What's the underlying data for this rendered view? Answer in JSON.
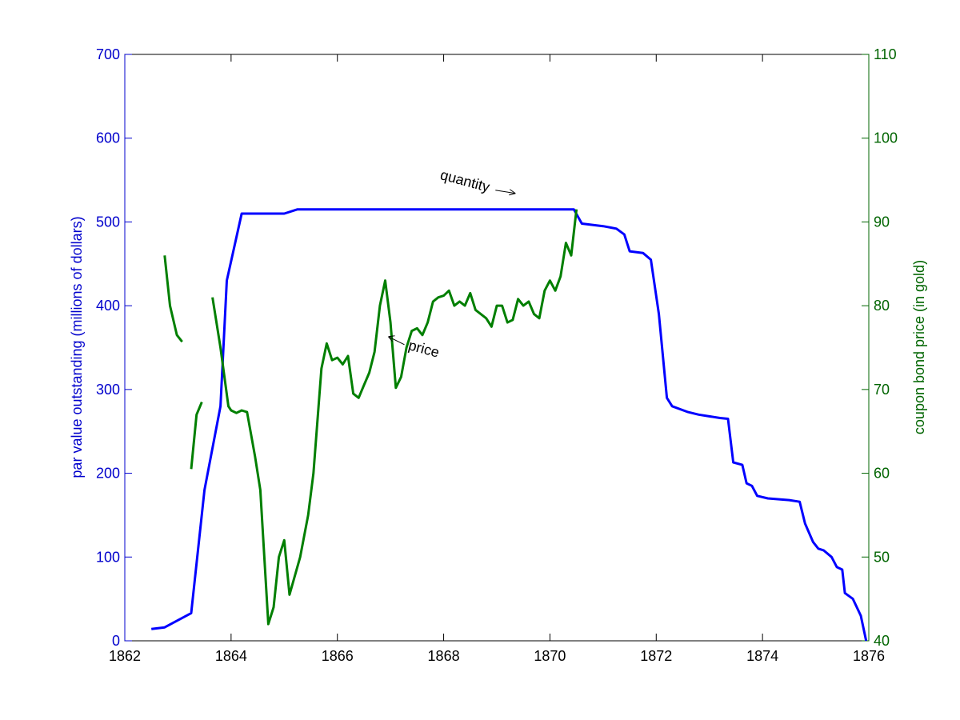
{
  "chart_data": {
    "type": "line",
    "x_axis": {
      "range": [
        1862,
        1876
      ],
      "ticks": [
        1862,
        1864,
        1866,
        1868,
        1870,
        1872,
        1874,
        1876
      ]
    },
    "y_left": {
      "label": "par value outstanding (millions of dollars)",
      "range": [
        0,
        700
      ],
      "ticks": [
        0,
        100,
        200,
        300,
        400,
        500,
        600,
        700
      ],
      "color": "#0000cc"
    },
    "y_right": {
      "label": "coupon bond price (in gold)",
      "range": [
        40,
        110
      ],
      "ticks": [
        40,
        50,
        60,
        70,
        80,
        90,
        100,
        110
      ],
      "color": "#006400"
    },
    "annotations": [
      {
        "text": "quantity",
        "target_axis": "left",
        "x": 1869.2,
        "y": 515
      },
      {
        "text": "price",
        "target_axis": "right",
        "x": 1866.9,
        "y": 76.5
      }
    ],
    "series": [
      {
        "axis": "left",
        "color": "#0000ff",
        "values": [
          [
            1862.5,
            14
          ],
          [
            1862.75,
            16
          ],
          [
            1863.25,
            33
          ],
          [
            1863.5,
            180
          ],
          [
            1863.8,
            280
          ],
          [
            1863.92,
            430
          ],
          [
            1864.2,
            510
          ],
          [
            1864.5,
            510
          ],
          [
            1865.0,
            510
          ],
          [
            1865.25,
            515
          ],
          [
            1866.0,
            515
          ],
          [
            1868.0,
            515
          ],
          [
            1870.0,
            515
          ],
          [
            1870.45,
            515
          ],
          [
            1870.6,
            498
          ],
          [
            1871.0,
            495
          ],
          [
            1871.25,
            492
          ],
          [
            1871.4,
            485
          ],
          [
            1871.5,
            465
          ],
          [
            1871.75,
            463
          ],
          [
            1871.9,
            455
          ],
          [
            1872.05,
            390
          ],
          [
            1872.2,
            290
          ],
          [
            1872.3,
            280
          ],
          [
            1872.6,
            273
          ],
          [
            1872.8,
            270
          ],
          [
            1873.2,
            266
          ],
          [
            1873.35,
            265
          ],
          [
            1873.45,
            213
          ],
          [
            1873.62,
            210
          ],
          [
            1873.7,
            188
          ],
          [
            1873.8,
            185
          ],
          [
            1873.9,
            173
          ],
          [
            1874.1,
            170
          ],
          [
            1874.5,
            168
          ],
          [
            1874.7,
            166
          ],
          [
            1874.8,
            140
          ],
          [
            1874.95,
            118
          ],
          [
            1875.05,
            110
          ],
          [
            1875.15,
            108
          ],
          [
            1875.3,
            100
          ],
          [
            1875.4,
            88
          ],
          [
            1875.5,
            85
          ],
          [
            1875.55,
            57
          ],
          [
            1875.7,
            50
          ],
          [
            1875.85,
            30
          ],
          [
            1875.95,
            0
          ]
        ]
      },
      {
        "axis": "right",
        "color": "#007f00",
        "segments": [
          [
            [
              1862.75,
              86
            ],
            [
              1862.85,
              80
            ],
            [
              1862.98,
              76.5
            ],
            [
              1863.08,
              75.7
            ]
          ],
          [
            [
              1863.25,
              60.5
            ],
            [
              1863.35,
              67
            ],
            [
              1863.45,
              68.5
            ]
          ],
          [
            [
              1863.65,
              81
            ],
            [
              1863.8,
              75
            ],
            [
              1863.95,
              68
            ],
            [
              1864.0,
              67.5
            ],
            [
              1864.1,
              67.2
            ],
            [
              1864.2,
              67.5
            ],
            [
              1864.3,
              67.3
            ],
            [
              1864.45,
              62
            ],
            [
              1864.55,
              58
            ],
            [
              1864.7,
              42
            ],
            [
              1864.8,
              44
            ],
            [
              1864.9,
              50
            ],
            [
              1865.0,
              52
            ],
            [
              1865.1,
              45.5
            ],
            [
              1865.3,
              50
            ],
            [
              1865.45,
              55
            ],
            [
              1865.55,
              60
            ],
            [
              1865.7,
              72.5
            ],
            [
              1865.8,
              75.5
            ],
            [
              1865.9,
              73.5
            ],
            [
              1866.0,
              73.8
            ],
            [
              1866.1,
              73
            ],
            [
              1866.2,
              74
            ],
            [
              1866.3,
              69.5
            ],
            [
              1866.4,
              69
            ],
            [
              1866.5,
              70.5
            ],
            [
              1866.6,
              72
            ],
            [
              1866.7,
              74.5
            ],
            [
              1866.8,
              80
            ],
            [
              1866.9,
              83
            ],
            [
              1867.0,
              78
            ],
            [
              1867.1,
              70.2
            ],
            [
              1867.2,
              71.5
            ],
            [
              1867.3,
              75
            ],
            [
              1867.4,
              77
            ],
            [
              1867.5,
              77.3
            ],
            [
              1867.6,
              76.5
            ],
            [
              1867.7,
              78
            ],
            [
              1867.8,
              80.5
            ],
            [
              1867.9,
              81
            ],
            [
              1868.0,
              81.2
            ],
            [
              1868.1,
              81.8
            ],
            [
              1868.2,
              80
            ],
            [
              1868.3,
              80.5
            ],
            [
              1868.4,
              80
            ],
            [
              1868.5,
              81.5
            ],
            [
              1868.6,
              79.5
            ],
            [
              1868.8,
              78.5
            ],
            [
              1868.9,
              77.5
            ],
            [
              1869.0,
              80
            ],
            [
              1869.1,
              80
            ],
            [
              1869.2,
              78
            ],
            [
              1869.3,
              78.3
            ],
            [
              1869.4,
              80.8
            ],
            [
              1869.5,
              80
            ],
            [
              1869.6,
              80.5
            ],
            [
              1869.7,
              79
            ],
            [
              1869.8,
              78.5
            ],
            [
              1869.9,
              81.8
            ],
            [
              1870.0,
              83
            ],
            [
              1870.1,
              81.8
            ],
            [
              1870.2,
              83.5
            ],
            [
              1870.3,
              87.5
            ],
            [
              1870.4,
              86
            ],
            [
              1870.5,
              91.5
            ]
          ]
        ]
      }
    ]
  }
}
